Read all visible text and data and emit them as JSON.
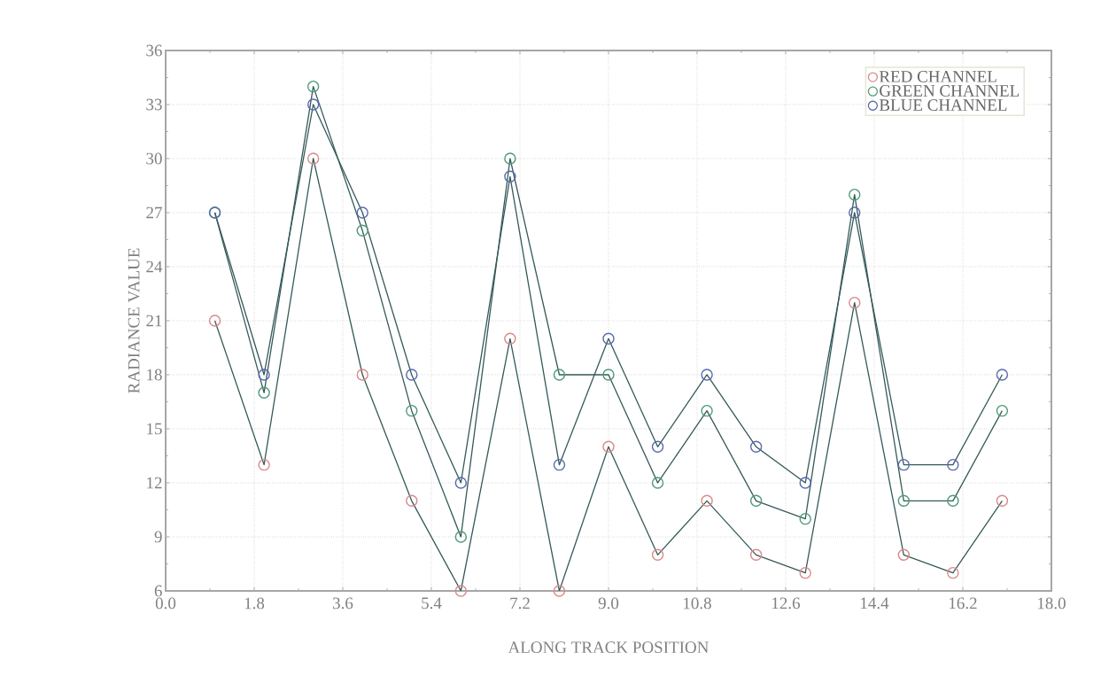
{
  "chart_data": {
    "type": "line",
    "xlabel": "ALONG TRACK POSITION",
    "ylabel": "RADIANCE VALUE",
    "x": [
      1,
      2,
      3,
      4,
      5,
      6,
      7,
      8,
      9,
      10,
      11,
      12,
      13,
      14,
      15,
      16,
      17
    ],
    "series": [
      {
        "name": "RED CHANNEL",
        "color": "#d98a8a",
        "values": [
          21,
          13,
          30,
          18,
          11,
          6,
          20,
          6,
          14,
          8,
          11,
          8,
          7,
          22,
          8,
          7,
          11
        ]
      },
      {
        "name": "GREEN CHANNEL",
        "color": "#4f9a78",
        "values": [
          27,
          17,
          34,
          26,
          16,
          9,
          30,
          18,
          18,
          12,
          16,
          11,
          10,
          28,
          11,
          11,
          16
        ]
      },
      {
        "name": "BLUE CHANNEL",
        "color": "#5a6ab0",
        "values": [
          27,
          18,
          33,
          27,
          18,
          12,
          29,
          13,
          20,
          14,
          18,
          14,
          12,
          27,
          13,
          13,
          18
        ]
      }
    ],
    "xlim": [
      0,
      18
    ],
    "ylim": [
      6,
      36
    ],
    "xticks": [
      {
        "value": 0,
        "label": "0.0"
      },
      1.8,
      3.6,
      5.4,
      7.2,
      {
        "value": 9,
        "label": "9.0"
      },
      10.8,
      12.6,
      14.4,
      16.2,
      {
        "value": 18,
        "label": "18.0"
      }
    ],
    "yticks": [
      6,
      9,
      12,
      15,
      18,
      21,
      24,
      27,
      30,
      33,
      36
    ],
    "grid": true,
    "legend": "top right",
    "marker": "circle",
    "line_style": "solid"
  }
}
